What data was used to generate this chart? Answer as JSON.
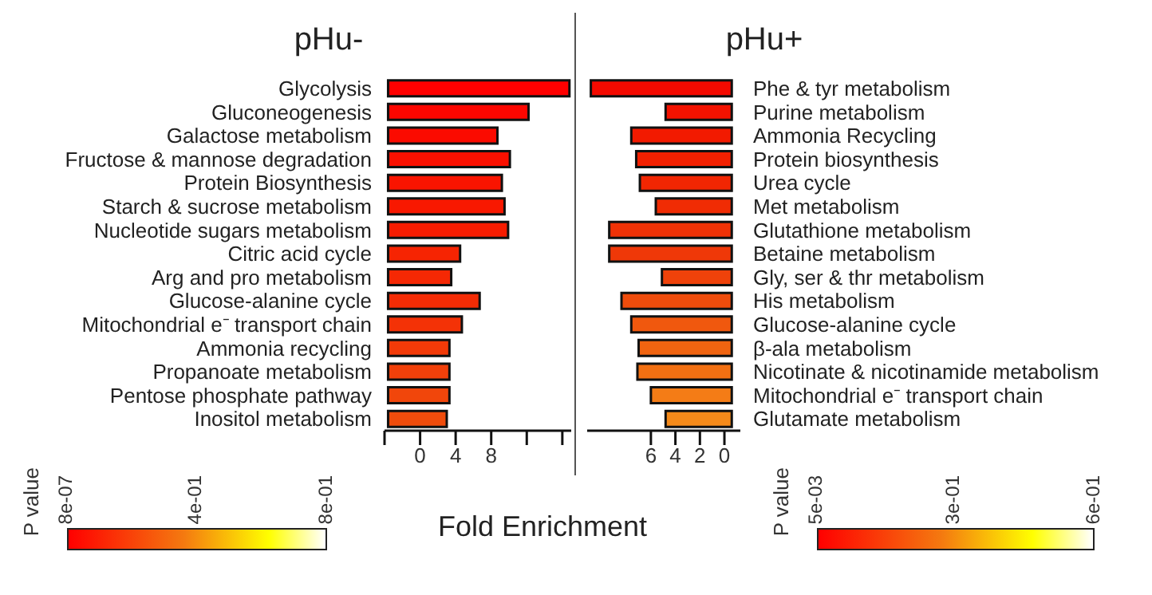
{
  "chart_data": [
    {
      "type": "bar",
      "orientation": "horizontal",
      "title": "pHu-",
      "xlabel": "Fold Enrichment",
      "clabel": "P value",
      "clim": [
        8e-07,
        0.8
      ],
      "cticks": [
        {
          "value": 8e-07,
          "label": "8e-07"
        },
        {
          "value": 0.4,
          "label": "4e-01"
        },
        {
          "value": 0.8,
          "label": "8e-01"
        }
      ],
      "categories": [
        "Glycolysis",
        "Gluconeogenesis",
        "Galactose metabolism",
        "Fructose & mannose degradation",
        "Protein Biosynthesis",
        "Starch & sucrose metabolism",
        "Nucleotide sugars metabolism",
        "Citric acid cycle",
        "Arg and pro metabolism",
        "Glucose-alanine cycle",
        "Mitochondrial e⁻ transport chain",
        "Ammonia recycling",
        "Propanoate metabolism",
        "Pentose phosphate pathway",
        "Inositol metabolism"
      ],
      "base": [
        -3.6,
        -3.6,
        -3.6,
        -3.6,
        -3.6,
        -3.6,
        -3.6,
        -3.6,
        -3.6,
        -3.6,
        -3.6,
        -3.6,
        -3.6,
        -3.6,
        -3.6
      ],
      "values": [
        20.4,
        15.8,
        12.3,
        13.7,
        12.8,
        13.1,
        13.5,
        8.1,
        7.1,
        10.3,
        8.3,
        6.9,
        6.9,
        6.9,
        6.6
      ],
      "colors": [
        "#ff0000",
        "#fd0600",
        "#fb0b00",
        "#fa1000",
        "#f91400",
        "#f81800",
        "#f71c00",
        "#f62402",
        "#f52804",
        "#f42c05",
        "#f43206",
        "#f33a08",
        "#f2400a",
        "#f1460b",
        "#f04c0c"
      ],
      "xlim": [
        -4,
        17
      ],
      "xticks": [
        {
          "value": -4,
          "label": null
        },
        0,
        4,
        8,
        {
          "value": 12,
          "label": null
        },
        {
          "value": 16,
          "label": null
        }
      ]
    },
    {
      "type": "bar",
      "orientation": "horizontal",
      "title": "pHu+",
      "clabel": "P value",
      "clim": [
        0.005,
        0.6
      ],
      "cticks": [
        {
          "value": 0.005,
          "label": "5e-03"
        },
        {
          "value": 0.3,
          "label": "3e-01"
        },
        {
          "value": 0.6,
          "label": "6e-01"
        }
      ],
      "categories": [
        "Phe & tyr metabolism",
        "Purine metabolism",
        "Ammonia Recycling",
        "Protein biosynthesis",
        "Urea cycle",
        "Met metabolism",
        "Glutathione metabolism",
        "Betaine metabolism",
        "Gly, ser & thr metabolism",
        "His metabolism",
        "Glucose-alanine cycle",
        "β-ala metabolism",
        "Nicotinate & nicotinamide metabolism",
        "Mitochondrial e⁻ transport chain",
        "Glutamate metabolism"
      ],
      "base": [
        -0.6,
        -0.6,
        -0.6,
        -0.6,
        -0.6,
        -0.6,
        -0.6,
        -0.6,
        -0.6,
        -0.6,
        -0.6,
        -0.6,
        -0.6,
        -0.6,
        -0.6
      ],
      "values": [
        11.5,
        5.4,
        8.2,
        7.8,
        7.5,
        6.2,
        10.0,
        10.0,
        5.7,
        9.0,
        8.2,
        7.6,
        7.7,
        6.6,
        5.4
      ],
      "colors": [
        "#f40a00",
        "#f31200",
        "#f21a00",
        "#f22000",
        "#f12602",
        "#f02c04",
        "#f03206",
        "#ef3808",
        "#ef420a",
        "#ef4c0c",
        "#f0580e",
        "#f16410",
        "#f27012",
        "#f47c16",
        "#f58a1a"
      ],
      "xlim": [
        11.2,
        -1.3
      ],
      "xticks": [
        6,
        4,
        2,
        0
      ]
    }
  ]
}
